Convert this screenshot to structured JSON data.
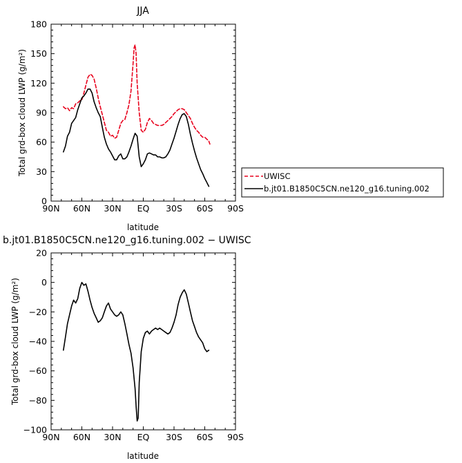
{
  "chart_data": [
    {
      "type": "line",
      "title": "JJA",
      "xlabel": "latitude",
      "ylabel": "Total grd-box cloud LWP (g/m²)",
      "xlim": [
        90,
        -90
      ],
      "ylim": [
        0,
        180
      ],
      "x_ticks": [
        90,
        60,
        30,
        0,
        -30,
        -60,
        -90
      ],
      "x_tick_labels": [
        "90N",
        "60N",
        "30N",
        "EQ",
        "30S",
        "60S",
        "90S"
      ],
      "y_ticks": [
        0,
        30,
        60,
        90,
        120,
        150,
        180
      ],
      "y_tick_labels": [
        "0",
        "30",
        "60",
        "90",
        "120",
        "150",
        "180"
      ],
      "legend": {
        "placement": "right"
      },
      "series": [
        {
          "name": "UWISC",
          "color": "#e8001c",
          "dash": "dashed",
          "points": [
            [
              78,
              96
            ],
            [
              76,
              94
            ],
            [
              74,
              95
            ],
            [
              72,
              92
            ],
            [
              70,
              95
            ],
            [
              68,
              94
            ],
            [
              66,
              99
            ],
            [
              64,
              100
            ],
            [
              62,
              102
            ],
            [
              60,
              103
            ],
            [
              58,
              110
            ],
            [
              56,
              118
            ],
            [
              54,
              126
            ],
            [
              52,
              129
            ],
            [
              50,
              128
            ],
            [
              48,
              124
            ],
            [
              46,
              115
            ],
            [
              44,
              105
            ],
            [
              42,
              96
            ],
            [
              40,
              88
            ],
            [
              38,
              80
            ],
            [
              36,
              72
            ],
            [
              34,
              70
            ],
            [
              32,
              66
            ],
            [
              30,
              67
            ],
            [
              28,
              64
            ],
            [
              26,
              65
            ],
            [
              24,
              72
            ],
            [
              22,
              79
            ],
            [
              20,
              82
            ],
            [
              18,
              83
            ],
            [
              16,
              90
            ],
            [
              14,
              98
            ],
            [
              12,
              112
            ],
            [
              10,
              140
            ],
            [
              9,
              156
            ],
            [
              8,
              159
            ],
            [
              7,
              150
            ],
            [
              6,
              120
            ],
            [
              4,
              90
            ],
            [
              2,
              72
            ],
            [
              0,
              70
            ],
            [
              -2,
              73
            ],
            [
              -4,
              80
            ],
            [
              -6,
              84
            ],
            [
              -8,
              82
            ],
            [
              -10,
              79
            ],
            [
              -12,
              78
            ],
            [
              -14,
              77
            ],
            [
              -16,
              77
            ],
            [
              -18,
              77
            ],
            [
              -20,
              78
            ],
            [
              -22,
              80
            ],
            [
              -24,
              82
            ],
            [
              -26,
              84
            ],
            [
              -28,
              86
            ],
            [
              -30,
              89
            ],
            [
              -32,
              91
            ],
            [
              -34,
              93
            ],
            [
              -36,
              94
            ],
            [
              -38,
              94
            ],
            [
              -40,
              93
            ],
            [
              -42,
              90
            ],
            [
              -44,
              87
            ],
            [
              -46,
              84
            ],
            [
              -48,
              79
            ],
            [
              -50,
              75
            ],
            [
              -52,
              72
            ],
            [
              -54,
              70
            ],
            [
              -56,
              67
            ],
            [
              -58,
              65
            ],
            [
              -60,
              65
            ],
            [
              -62,
              63
            ],
            [
              -64,
              61
            ],
            [
              -65,
              58
            ]
          ]
        },
        {
          "name": "b.jt01.B1850C5CN.ne120_g16.tuning.002",
          "color": "#000000",
          "dash": "solid",
          "points": [
            [
              78,
              50
            ],
            [
              76,
              56
            ],
            [
              74,
              66
            ],
            [
              72,
              70
            ],
            [
              70,
              79
            ],
            [
              68,
              82
            ],
            [
              66,
              85
            ],
            [
              64,
              93
            ],
            [
              62,
              99
            ],
            [
              60,
              105
            ],
            [
              58,
              107
            ],
            [
              56,
              110
            ],
            [
              54,
              114
            ],
            [
              52,
              114
            ],
            [
              50,
              110
            ],
            [
              48,
              101
            ],
            [
              46,
              95
            ],
            [
              44,
              90
            ],
            [
              42,
              86
            ],
            [
              40,
              75
            ],
            [
              38,
              65
            ],
            [
              36,
              58
            ],
            [
              34,
              53
            ],
            [
              32,
              50
            ],
            [
              30,
              46
            ],
            [
              28,
              42
            ],
            [
              26,
              42
            ],
            [
              24,
              46
            ],
            [
              22,
              48
            ],
            [
              20,
              43
            ],
            [
              18,
              43
            ],
            [
              16,
              45
            ],
            [
              14,
              50
            ],
            [
              12,
              56
            ],
            [
              10,
              63
            ],
            [
              8,
              69
            ],
            [
              6,
              66
            ],
            [
              4,
              45
            ],
            [
              2,
              35
            ],
            [
              0,
              38
            ],
            [
              -2,
              42
            ],
            [
              -4,
              48
            ],
            [
              -6,
              49
            ],
            [
              -8,
              48
            ],
            [
              -10,
              47
            ],
            [
              -12,
              47
            ],
            [
              -14,
              45
            ],
            [
              -16,
              45
            ],
            [
              -18,
              44
            ],
            [
              -20,
              44
            ],
            [
              -22,
              45
            ],
            [
              -24,
              48
            ],
            [
              -26,
              52
            ],
            [
              -28,
              58
            ],
            [
              -30,
              64
            ],
            [
              -32,
              71
            ],
            [
              -34,
              78
            ],
            [
              -36,
              84
            ],
            [
              -38,
              88
            ],
            [
              -40,
              89
            ],
            [
              -42,
              86
            ],
            [
              -44,
              78
            ],
            [
              -46,
              68
            ],
            [
              -48,
              59
            ],
            [
              -50,
              51
            ],
            [
              -52,
              44
            ],
            [
              -54,
              38
            ],
            [
              -56,
              32
            ],
            [
              -58,
              28
            ],
            [
              -60,
              23
            ],
            [
              -62,
              19
            ],
            [
              -64,
              15
            ]
          ]
        }
      ]
    },
    {
      "type": "line",
      "title": "b.jt01.B1850C5CN.ne120_g16.tuning.002 − UWISC",
      "xlabel": "latitude",
      "ylabel": "Total grd-box cloud LWP (g/m²)",
      "xlim": [
        90,
        -90
      ],
      "ylim": [
        -100,
        20
      ],
      "x_ticks": [
        90,
        60,
        30,
        0,
        -30,
        -60,
        -90
      ],
      "x_tick_labels": [
        "90N",
        "60N",
        "30N",
        "EQ",
        "30S",
        "60S",
        "90S"
      ],
      "y_ticks": [
        -100,
        -80,
        -60,
        -40,
        -20,
        0,
        20
      ],
      "y_tick_labels": [
        "−100",
        "−80",
        "−60",
        "−40",
        "−20",
        "0",
        "20"
      ],
      "series": [
        {
          "color": "#000000",
          "dash": "solid",
          "points": [
            [
              78,
              -46
            ],
            [
              76,
              -37
            ],
            [
              74,
              -28
            ],
            [
              72,
              -22
            ],
            [
              70,
              -16
            ],
            [
              68,
              -12
            ],
            [
              66,
              -14
            ],
            [
              64,
              -11
            ],
            [
              62,
              -4
            ],
            [
              60,
              0
            ],
            [
              58,
              -2
            ],
            [
              56,
              -1
            ],
            [
              54,
              -6
            ],
            [
              52,
              -12
            ],
            [
              50,
              -17
            ],
            [
              48,
              -21
            ],
            [
              46,
              -24
            ],
            [
              44,
              -27
            ],
            [
              42,
              -26
            ],
            [
              40,
              -24
            ],
            [
              38,
              -20
            ],
            [
              36,
              -16
            ],
            [
              34,
              -14
            ],
            [
              32,
              -18
            ],
            [
              30,
              -20
            ],
            [
              28,
              -22
            ],
            [
              26,
              -23
            ],
            [
              24,
              -22
            ],
            [
              22,
              -20
            ],
            [
              20,
              -22
            ],
            [
              18,
              -28
            ],
            [
              16,
              -35
            ],
            [
              14,
              -42
            ],
            [
              12,
              -48
            ],
            [
              10,
              -58
            ],
            [
              8,
              -72
            ],
            [
              7,
              -84
            ],
            [
              6,
              -94
            ],
            [
              5,
              -92
            ],
            [
              4,
              -68
            ],
            [
              2,
              -47
            ],
            [
              0,
              -38
            ],
            [
              -2,
              -34
            ],
            [
              -4,
              -33
            ],
            [
              -6,
              -35
            ],
            [
              -8,
              -33
            ],
            [
              -10,
              -32
            ],
            [
              -12,
              -31
            ],
            [
              -14,
              -32
            ],
            [
              -16,
              -31
            ],
            [
              -18,
              -32
            ],
            [
              -20,
              -33
            ],
            [
              -22,
              -34
            ],
            [
              -24,
              -35
            ],
            [
              -26,
              -34
            ],
            [
              -28,
              -31
            ],
            [
              -30,
              -27
            ],
            [
              -32,
              -22
            ],
            [
              -34,
              -15
            ],
            [
              -36,
              -10
            ],
            [
              -38,
              -7
            ],
            [
              -40,
              -5
            ],
            [
              -42,
              -8
            ],
            [
              -44,
              -14
            ],
            [
              -46,
              -20
            ],
            [
              -48,
              -26
            ],
            [
              -50,
              -30
            ],
            [
              -52,
              -34
            ],
            [
              -54,
              -37
            ],
            [
              -56,
              -39
            ],
            [
              -58,
              -41
            ],
            [
              -60,
              -45
            ],
            [
              -62,
              -47
            ],
            [
              -64,
              -46
            ]
          ]
        }
      ]
    }
  ]
}
